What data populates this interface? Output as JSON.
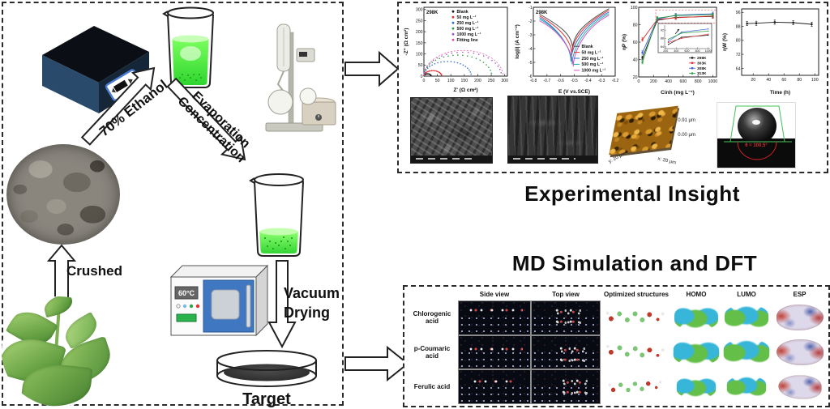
{
  "workflow": {
    "ethanol_label": "70% Ethanol",
    "evaporation_label": [
      "Evaporation",
      "Concentration"
    ],
    "crushed_label": "Crushed",
    "vacuum_label": [
      "Vacuum",
      "Drying"
    ],
    "target_label": "Target",
    "oven_display": "60°C"
  },
  "sections": {
    "experimental_title": "Experimental Insight",
    "md_title": "MD Simulation and DFT"
  },
  "afm": {
    "scale_max": "0.91 μm",
    "scale_min": "0.00 μm",
    "y_axis": "y: 20 μm",
    "x_axis": "x: 20 μm"
  },
  "contact_angle": {
    "label": "θ = 100.5°"
  },
  "md_panel": {
    "col_headers": [
      "Side view",
      "Top view"
    ],
    "struct_headers": [
      "Optimized structures",
      "HOMO",
      "LUMO",
      "ESP"
    ],
    "rows": [
      {
        "label": "Chlorogenic acid"
      },
      {
        "label": "p-Coumaric acid"
      },
      {
        "label": "Ferulic acid"
      }
    ]
  },
  "chart_data": [
    {
      "id": "nyquist",
      "type": "scatter",
      "title": "298K",
      "xlabel": "Z' (Ω cm²)",
      "ylabel": "-Z'' (Ω cm²)",
      "xlim": [
        0,
        310
      ],
      "ylim": [
        0,
        310
      ],
      "xticks": [
        0,
        50,
        100,
        150,
        200,
        250,
        300
      ],
      "yticks": [
        0,
        50,
        100,
        150,
        200,
        250,
        300
      ],
      "series": [
        {
          "name": "Blank",
          "color": "#1a1a1a",
          "diameter": 27
        },
        {
          "name": "50 mg L⁻¹",
          "color": "#e03131",
          "diameter": 66
        },
        {
          "name": "250 mg L⁻¹",
          "color": "#2f6fd6",
          "diameter": 176
        },
        {
          "name": "500 mg L⁻¹",
          "color": "#2f9e44",
          "diameter": 252
        },
        {
          "name": "1000 mg L⁻¹",
          "color": "#9b59d0",
          "diameter": 288
        },
        {
          "name": "Fitting line",
          "color": "#e64fa0",
          "diameter": null
        }
      ]
    },
    {
      "id": "tafel",
      "type": "line",
      "title": "298K",
      "xlabel": "E (V vs.SCE)",
      "ylabel": "log|i| (A cm⁻²)",
      "xlim": [
        -0.8,
        -0.2
      ],
      "ylim": [
        -6,
        -1
      ],
      "xticks": [
        -0.8,
        -0.7,
        -0.6,
        -0.5,
        -0.4,
        -0.3,
        -0.2
      ],
      "yticks": [
        -6,
        -5,
        -4,
        -3,
        -2,
        -1
      ],
      "series": [
        {
          "name": "Blank",
          "color": "#4d4d4d",
          "ecorr": -0.512,
          "icorr": -4.05
        },
        {
          "name": "50 mg L⁻¹",
          "color": "#e03131",
          "ecorr": -0.518,
          "icorr": -4.45
        },
        {
          "name": "250 mg L⁻¹",
          "color": "#2f6fd6",
          "ecorr": -0.524,
          "icorr": -4.95
        },
        {
          "name": "500 mg L⁻¹",
          "color": "#18b5a3",
          "ecorr": -0.515,
          "icorr": -5.15
        },
        {
          "name": "1000 mg L⁻¹",
          "color": "#d94fd0",
          "ecorr": -0.507,
          "icorr": -5.3
        }
      ]
    },
    {
      "id": "eff-conc",
      "type": "line",
      "xlabel": "Cinh (mg L⁻¹)",
      "ylabel": "ηP (%)",
      "xlim": [
        0,
        1050
      ],
      "ylim": [
        20,
        100
      ],
      "xticks": [
        0,
        200,
        400,
        600,
        800,
        1000
      ],
      "yticks": [
        20,
        40,
        60,
        80,
        100
      ],
      "x": [
        50,
        250,
        500,
        1000
      ],
      "error": 2,
      "highlight_box": {
        "x": [
          230,
          1045
        ],
        "y": [
          82,
          97
        ]
      },
      "inset": {
        "xlim": [
          180,
          1020
        ],
        "ylim": [
          83,
          94
        ],
        "yticks": [
          84,
          88,
          92
        ],
        "xticks": [
          200,
          400,
          600,
          800,
          1000
        ]
      },
      "series": [
        {
          "name": "298K",
          "color": "#1a1a1a",
          "values": [
            42,
            85,
            88.5,
            89.5
          ]
        },
        {
          "name": "303K",
          "color": "#e03131",
          "values": [
            63,
            86,
            88,
            90
          ]
        },
        {
          "name": "308K",
          "color": "#3b5fd9",
          "values": [
            48,
            86.5,
            91,
            92.5
          ]
        },
        {
          "name": "313K",
          "color": "#2f9e44",
          "values": [
            37,
            87.5,
            90.5,
            91.5
          ]
        }
      ]
    },
    {
      "id": "eff-time",
      "type": "line",
      "xlabel": "Time (h)",
      "ylabel": "ηW (%)",
      "xlim": [
        5,
        105
      ],
      "ylim": [
        60,
        98
      ],
      "xticks": [
        20,
        40,
        60,
        80,
        100
      ],
      "yticks": [
        64,
        72,
        80,
        88,
        96
      ],
      "x": [
        12,
        24,
        48,
        72,
        96
      ],
      "error": 1.2,
      "series": [
        {
          "name": "ηW",
          "color": "#1a1a1a",
          "values": [
            89.6,
            89.8,
            90.4,
            90.1,
            89.2
          ]
        }
      ]
    }
  ]
}
